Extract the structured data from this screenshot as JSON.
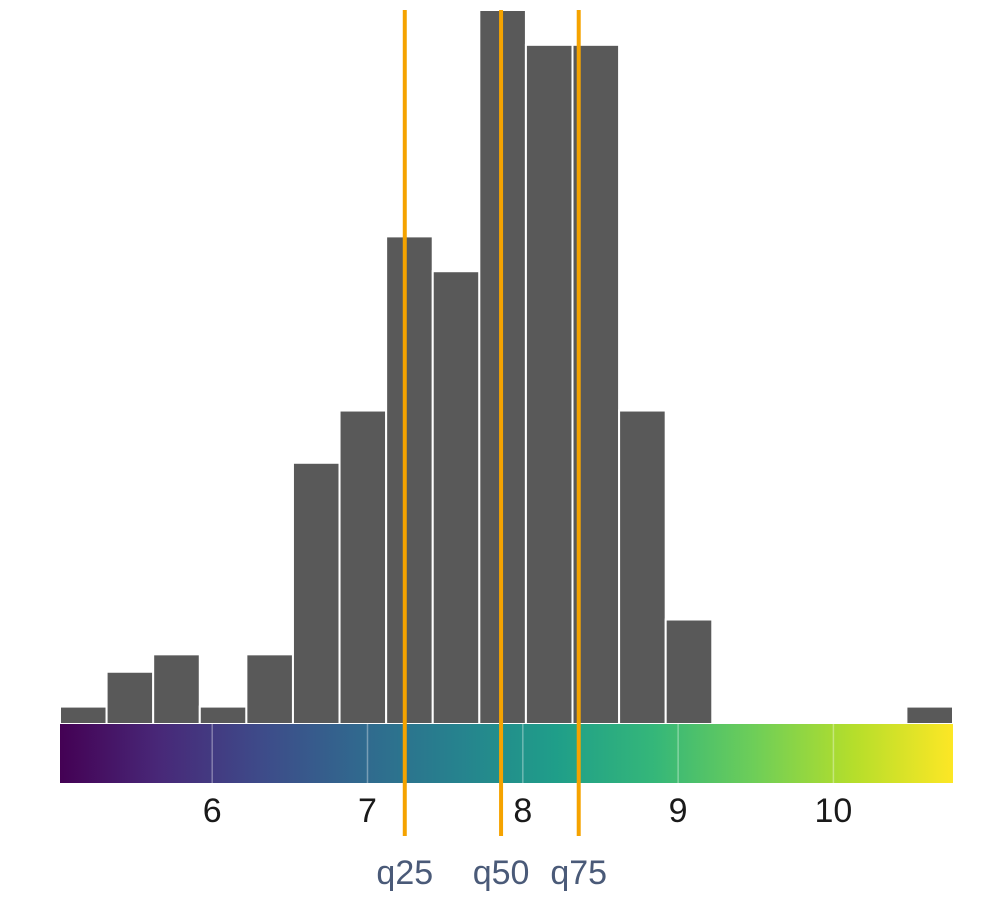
{
  "chart_data": {
    "type": "bar",
    "subtype": "histogram",
    "title": "",
    "xlabel": "",
    "ylabel": "",
    "xlim": [
      5.02,
      10.77
    ],
    "ylim": [
      0,
      41
    ],
    "bin_width": 0.3,
    "bins": [
      {
        "x0": 5.02,
        "x1": 5.32,
        "count": 1
      },
      {
        "x0": 5.32,
        "x1": 5.62,
        "count": 3
      },
      {
        "x0": 5.62,
        "x1": 5.92,
        "count": 4
      },
      {
        "x0": 5.92,
        "x1": 6.22,
        "count": 1
      },
      {
        "x0": 6.22,
        "x1": 6.52,
        "count": 4
      },
      {
        "x0": 6.52,
        "x1": 6.82,
        "count": 15
      },
      {
        "x0": 6.82,
        "x1": 7.12,
        "count": 18
      },
      {
        "x0": 7.12,
        "x1": 7.42,
        "count": 28
      },
      {
        "x0": 7.42,
        "x1": 7.72,
        "count": 26
      },
      {
        "x0": 7.72,
        "x1": 8.02,
        "count": 41
      },
      {
        "x0": 8.02,
        "x1": 8.32,
        "count": 39
      },
      {
        "x0": 8.32,
        "x1": 8.62,
        "count": 39
      },
      {
        "x0": 8.62,
        "x1": 8.92,
        "count": 18
      },
      {
        "x0": 8.92,
        "x1": 9.22,
        "count": 6
      },
      {
        "x0": 10.47,
        "x1": 10.77,
        "count": 1
      }
    ],
    "x_ticks": [
      6,
      7,
      8,
      9,
      10
    ],
    "x_tick_labels": [
      "6",
      "7",
      "8",
      "9",
      "10"
    ],
    "quantiles": [
      {
        "label": "q25",
        "value": 7.24
      },
      {
        "label": "q50",
        "value": 7.86
      },
      {
        "label": "q75",
        "value": 8.36
      }
    ],
    "colorbar": {
      "palette": "viridis",
      "range": [
        5.02,
        10.77
      ]
    },
    "grid": false,
    "legend": "none"
  },
  "colors": {
    "bar_fill": "#595959",
    "bar_stroke": "#ffffff",
    "quantile_line": "#f5a300",
    "quantile_label": "#4a5a78",
    "tick_label": "#1a1a1a",
    "viridis_stops": [
      "#440154",
      "#482878",
      "#3e4a89",
      "#31688e",
      "#26828e",
      "#1f9e89",
      "#35b779",
      "#6ece58",
      "#b5de2b",
      "#fde725"
    ]
  }
}
